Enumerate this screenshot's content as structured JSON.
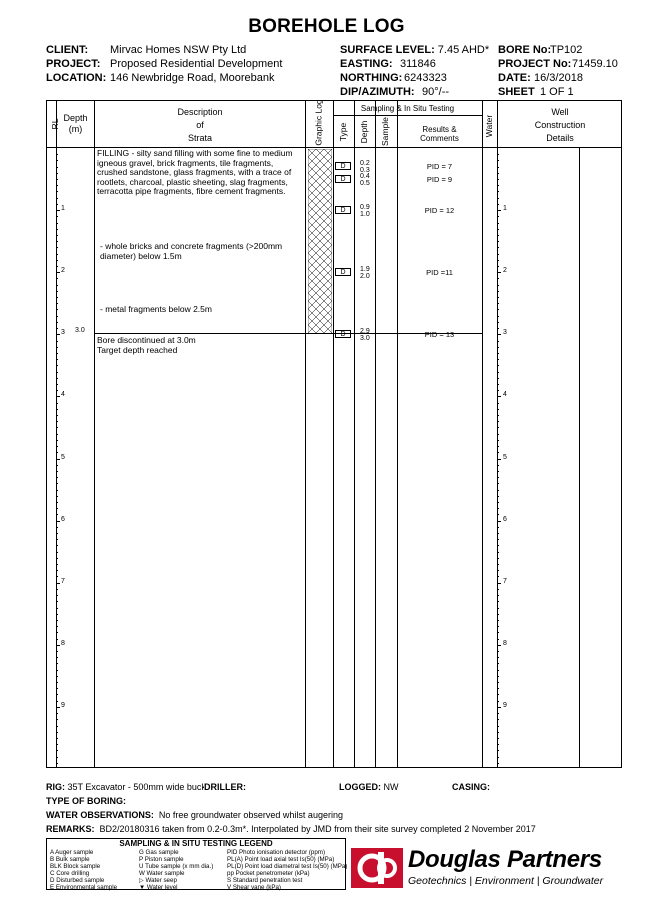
{
  "title": "BOREHOLE LOG",
  "header": {
    "client_label": "CLIENT:",
    "client": "Mirvac Homes NSW Pty Ltd",
    "project_label": "PROJECT:",
    "project": "Proposed Residential Development",
    "location_label": "LOCATION:",
    "location": "146 Newbridge Road, Moorebank",
    "surface_label": "SURFACE LEVEL:",
    "surface": "7.45 AHD*",
    "easting_label": "EASTING:",
    "easting": "311846",
    "northing_label": "NORTHING:",
    "northing": "6243323",
    "dip_label": "DIP/AZIMUTH:",
    "dip": "90°/--",
    "bore_label": "BORE No:",
    "bore": "TP102",
    "projno_label": "PROJECT No:",
    "projno": "71459.10",
    "date_label": "DATE:",
    "date": "16/3/2018",
    "sheet_label": "SHEET",
    "sheet": "1  OF  1"
  },
  "columns": {
    "rl": "RL",
    "depth": "Depth\n(m)",
    "desc1": "Description",
    "desc2": "of",
    "desc3": "Strata",
    "graphic": "Graphic Log",
    "sampling": "Sampling & In Situ Testing",
    "type": "Type",
    "sdepth": "Depth",
    "sample": "Sample",
    "results": "Results &\nComments",
    "water": "Water",
    "well1": "Well",
    "well2": "Construction",
    "well3": "Details"
  },
  "strata": {
    "fill": "FILLING - silty sand filling with some fine to medium igneous gravel, brick fragments, tile fragments, crushed sandstone, glass fragments, with a trace of rootlets, charcoal, plastic sheeting, slag fragments, terracotta pipe fragments, fibre cement fragments.",
    "note1": "- whole bricks and concrete fragments (>200mm diameter) below 1.5m",
    "note2": "- metal fragments below 2.5m",
    "end1": "Bore discontinued at 3.0m",
    "end2": "Target depth reached",
    "base_depth": "3.0"
  },
  "depth_ticks": [
    "1",
    "2",
    "3",
    "4",
    "5",
    "6",
    "7",
    "8",
    "9"
  ],
  "samples": [
    {
      "type": "D",
      "top": "0.2",
      "bot": "0.3",
      "pid": "PID = 7"
    },
    {
      "type": "D",
      "top": "0.4",
      "bot": "0.5",
      "pid": "PID = 9"
    },
    {
      "type": "D",
      "top": "0.9",
      "bot": "1.0",
      "pid": "PID = 12"
    },
    {
      "type": "D",
      "top": "1.9",
      "bot": "2.0",
      "pid": "PID =11"
    },
    {
      "type": "D",
      "top": "2.9",
      "bot": "3.0",
      "pid": "PID = 13"
    }
  ],
  "footer": {
    "rig_label": "RIG:",
    "rig": "35T Excavator - 500mm wide bucket",
    "driller_label": "DRILLER:",
    "driller": "",
    "logged_label": "LOGGED:",
    "logged": "NW",
    "casing_label": "CASING:",
    "casing": "",
    "boring_label": "TYPE OF BORING:",
    "boring": "",
    "water_label": "WATER OBSERVATIONS:",
    "water": "No free groundwater observed whilst augering",
    "remarks_label": "REMARKS:",
    "remarks": "BD2/20180316 taken from 0.2-0.3m*. Interpolated by JMD from their site survey completed 2 November 2017"
  },
  "legend": {
    "title": "SAMPLING & IN SITU TESTING LEGEND",
    "col1": [
      "A    Auger sample",
      "B    Bulk sample",
      "BLK Block sample",
      "C    Core drilling",
      "D    Disturbed sample",
      "E    Environmental sample"
    ],
    "col2": [
      "G    Gas sample",
      "P    Piston sample",
      "U    Tube sample (x mm dia.)",
      "W   Water sample",
      "▷   Water seep",
      "▼   Water level"
    ],
    "col3": [
      "PID   Photo ionisation detector (ppm)",
      "PL(A) Point load axial test Is(50) (MPa)",
      "PL(D) Point load diametral test Is(50) (MPa)",
      "pp    Pocket penetrometer (kPa)",
      "S      Standard penetration test",
      "V      Shear vane (kPa)"
    ]
  },
  "brand": {
    "name": "Douglas Partners",
    "tagline": "Geotechnics  |  Environment  |  Groundwater",
    "color": "#c8102e"
  }
}
